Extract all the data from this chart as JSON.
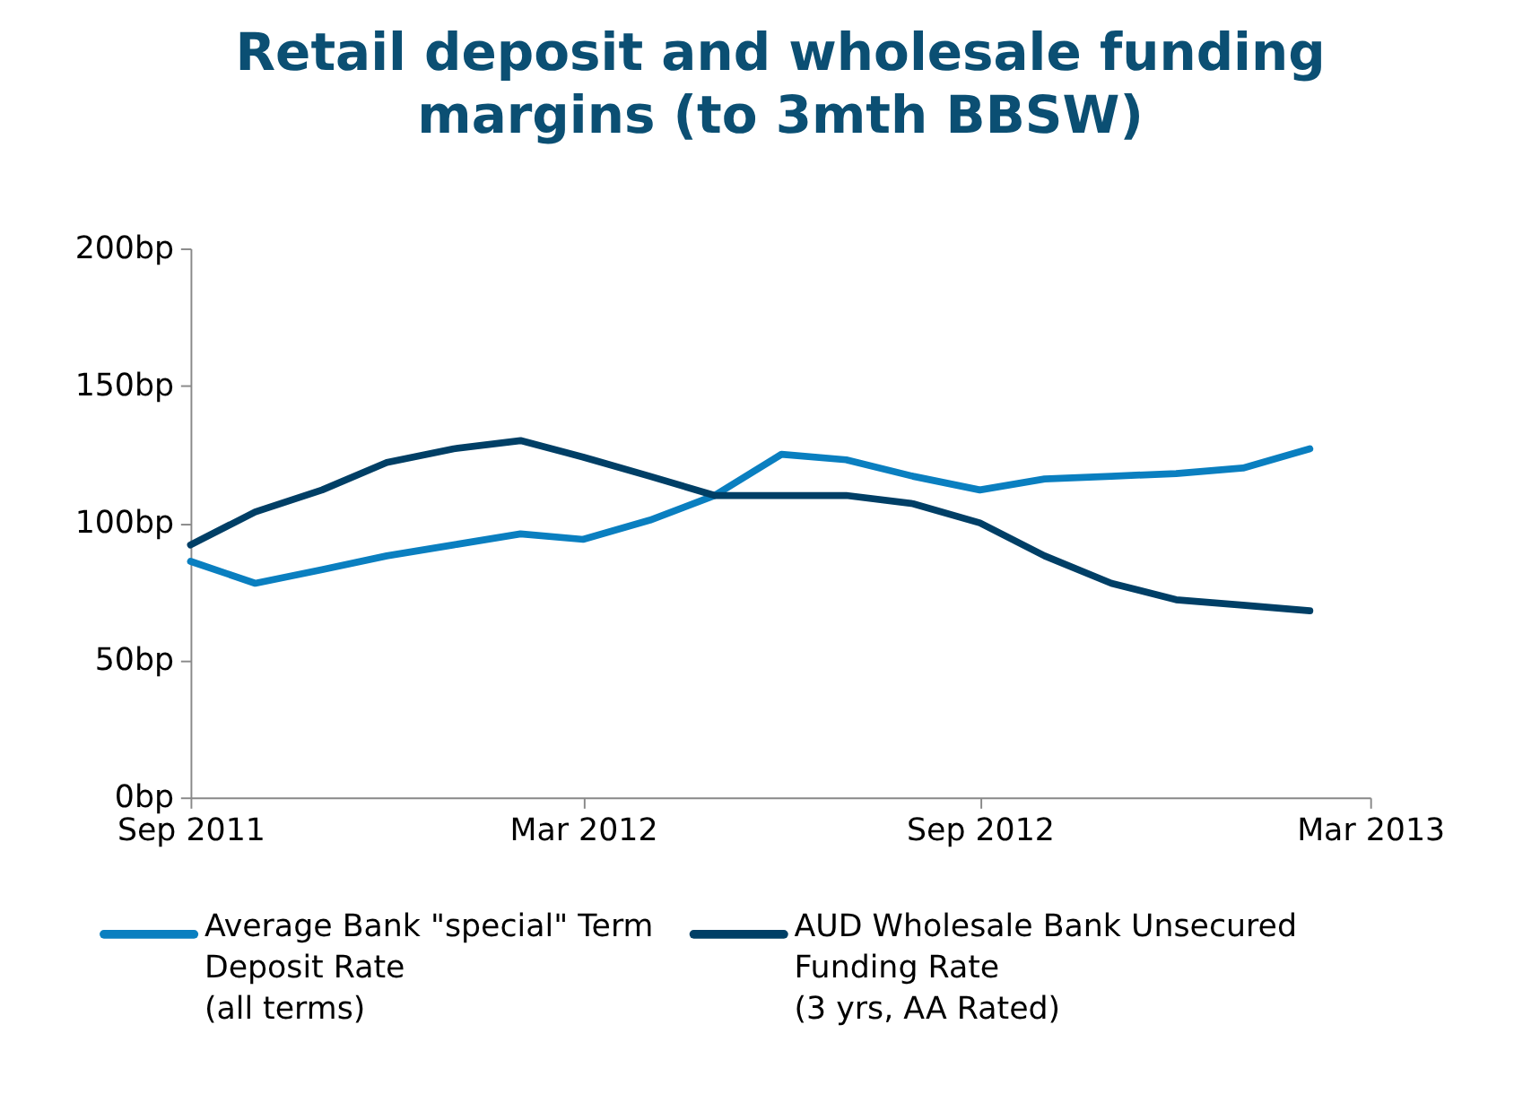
{
  "chart_data": {
    "type": "line",
    "title": "Retail deposit and wholesale funding margins (to 3mth BBSW)",
    "x": [
      "2011-09",
      "2011-10",
      "2011-11",
      "2011-12",
      "2012-01",
      "2012-02",
      "2012-03",
      "2012-04",
      "2012-05",
      "2012-06",
      "2012-07",
      "2012-08",
      "2012-09",
      "2012-10",
      "2012-11",
      "2012-12",
      "2013-01",
      "2013-02"
    ],
    "series": [
      {
        "name": "Average Bank \"special\" Term Deposit Rate (all terms)",
        "color": "#0a7fc0",
        "values": [
          86,
          78,
          83,
          88,
          92,
          96,
          94,
          101,
          110,
          125,
          123,
          117,
          112,
          116,
          117,
          118,
          120,
          127
        ]
      },
      {
        "name": "AUD Wholesale Bank Unsecured Funding Rate (3 yrs, AA Rated)",
        "color": "#003f66",
        "values": [
          92,
          104,
          112,
          122,
          127,
          130,
          124,
          117,
          110,
          110,
          110,
          107,
          100,
          88,
          78,
          72,
          70,
          68
        ]
      }
    ],
    "xlim": [
      "2011-09",
      "2013-03"
    ],
    "xticks": [
      {
        "value": "2011-09",
        "label": "Sep 2011"
      },
      {
        "value": "2012-03",
        "label": "Mar 2012"
      },
      {
        "value": "2012-09",
        "label": "Sep 2012"
      },
      {
        "value": "2013-03",
        "label": "Mar 2013"
      }
    ],
    "ylim": [
      0,
      200
    ],
    "yticks": [
      {
        "value": 0,
        "label": "0bp"
      },
      {
        "value": 50,
        "label": "50bp"
      },
      {
        "value": 100,
        "label": "100bp"
      },
      {
        "value": 150,
        "label": "150bp"
      },
      {
        "value": 200,
        "label": "200bp"
      }
    ],
    "grid": false,
    "legend": "bottom",
    "line_style": "solid",
    "marker": "none"
  }
}
